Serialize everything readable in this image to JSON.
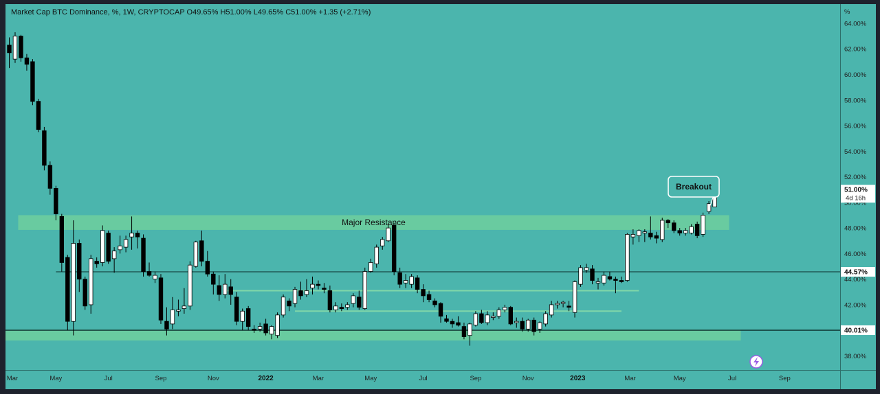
{
  "header": {
    "legend": "Market Cap BTC Dominance, %, 1W, CRYPTOCAP  O49.65%  H51.00%  L49.65%  C51.00%  +1.35 (+2.71%)"
  },
  "colors": {
    "background": "#4bb5ad",
    "zone": "#6fcf9e",
    "bull": "#ffffff",
    "bear": "#000000",
    "frame": "#1e222d",
    "axis_bg": "#4bb5ad"
  },
  "icons": {
    "bolt": "lightning-bolt-icon"
  },
  "chart_data": {
    "type": "candlestick",
    "title": "Market Cap BTC Dominance, %, 1W, CRYPTOCAP",
    "ohlc_summary": {
      "open": "49.65%",
      "high": "51.00%",
      "low": "49.65%",
      "close": "51.00%",
      "change": "+1.35 (+2.71%)"
    },
    "ylim": [
      36.9,
      65.5
    ],
    "y_unit_label": "%",
    "y_ticks": [
      "64.00%",
      "62.00%",
      "60.00%",
      "58.00%",
      "56.00%",
      "54.00%",
      "52.00%",
      "50.00%",
      "48.00%",
      "46.00%",
      "44.00%",
      "42.00%",
      "40.00%",
      "38.00%"
    ],
    "x_ticks": [
      {
        "label": "Mar",
        "index": -1.5,
        "bold": false
      },
      {
        "label": "May",
        "index": 8,
        "bold": false
      },
      {
        "label": "Jul",
        "index": 17,
        "bold": false
      },
      {
        "label": "Sep",
        "index": 26,
        "bold": false
      },
      {
        "label": "Nov",
        "index": 35,
        "bold": false
      },
      {
        "label": "2022",
        "index": 44,
        "bold": true
      },
      {
        "label": "Mar",
        "index": 53,
        "bold": false
      },
      {
        "label": "May",
        "index": 62,
        "bold": false
      },
      {
        "label": "Jul",
        "index": 71,
        "bold": false
      },
      {
        "label": "Sep",
        "index": 80,
        "bold": false
      },
      {
        "label": "Nov",
        "index": 89,
        "bold": false
      },
      {
        "label": "2023",
        "index": 97.5,
        "bold": true
      },
      {
        "label": "Mar",
        "index": 106.5,
        "bold": false
      },
      {
        "label": "May",
        "index": 115,
        "bold": false
      },
      {
        "label": "Jul",
        "index": 124,
        "bold": false
      },
      {
        "label": "Sep",
        "index": 133,
        "bold": false
      }
    ],
    "candles": [
      {
        "o": 62.3,
        "h": 62.9,
        "l": 60.5,
        "c": 61.7
      },
      {
        "o": 61.2,
        "h": 63.3,
        "l": 60.9,
        "c": 63.0
      },
      {
        "o": 63.0,
        "h": 63.1,
        "l": 61.0,
        "c": 61.3
      },
      {
        "o": 61.3,
        "h": 61.6,
        "l": 60.3,
        "c": 60.8
      },
      {
        "o": 61.0,
        "h": 61.2,
        "l": 57.6,
        "c": 57.9
      },
      {
        "o": 57.9,
        "h": 58.1,
        "l": 55.5,
        "c": 55.7
      },
      {
        "o": 55.6,
        "h": 55.9,
        "l": 52.5,
        "c": 52.9
      },
      {
        "o": 52.9,
        "h": 53.2,
        "l": 50.6,
        "c": 51.1
      },
      {
        "o": 51.1,
        "h": 51.3,
        "l": 48.6,
        "c": 49.1
      },
      {
        "o": 48.9,
        "h": 49.1,
        "l": 44.6,
        "c": 45.3
      },
      {
        "o": 45.7,
        "h": 45.9,
        "l": 40.0,
        "c": 40.7
      },
      {
        "o": 40.7,
        "h": 48.6,
        "l": 39.6,
        "c": 46.8
      },
      {
        "o": 46.8,
        "h": 47.1,
        "l": 43.0,
        "c": 44.0
      },
      {
        "o": 44.0,
        "h": 44.2,
        "l": 41.6,
        "c": 41.9
      },
      {
        "o": 42.0,
        "h": 45.9,
        "l": 41.3,
        "c": 45.6
      },
      {
        "o": 45.4,
        "h": 45.7,
        "l": 44.9,
        "c": 45.2
      },
      {
        "o": 45.3,
        "h": 48.2,
        "l": 45.0,
        "c": 47.8
      },
      {
        "o": 47.6,
        "h": 47.8,
        "l": 45.2,
        "c": 45.4
      },
      {
        "o": 45.6,
        "h": 46.5,
        "l": 44.5,
        "c": 46.2
      },
      {
        "o": 46.3,
        "h": 47.4,
        "l": 46.0,
        "c": 46.6
      },
      {
        "o": 46.5,
        "h": 47.4,
        "l": 46.1,
        "c": 47.1
      },
      {
        "o": 47.3,
        "h": 48.9,
        "l": 46.3,
        "c": 47.6
      },
      {
        "o": 47.6,
        "h": 47.8,
        "l": 46.4,
        "c": 47.3
      },
      {
        "o": 47.2,
        "h": 47.5,
        "l": 44.2,
        "c": 44.6
      },
      {
        "o": 44.6,
        "h": 45.3,
        "l": 44.2,
        "c": 44.3
      },
      {
        "o": 44.0,
        "h": 44.6,
        "l": 43.7,
        "c": 44.3
      },
      {
        "o": 44.1,
        "h": 44.4,
        "l": 40.5,
        "c": 40.8
      },
      {
        "o": 40.7,
        "h": 41.8,
        "l": 39.6,
        "c": 40.1
      },
      {
        "o": 40.5,
        "h": 42.6,
        "l": 40.1,
        "c": 41.6
      },
      {
        "o": 41.5,
        "h": 42.4,
        "l": 41.1,
        "c": 41.6
      },
      {
        "o": 41.7,
        "h": 43.3,
        "l": 41.3,
        "c": 41.9
      },
      {
        "o": 41.9,
        "h": 45.4,
        "l": 41.6,
        "c": 45.1
      },
      {
        "o": 45.0,
        "h": 47.0,
        "l": 44.9,
        "c": 46.9
      },
      {
        "o": 47.0,
        "h": 47.8,
        "l": 45.0,
        "c": 45.4
      },
      {
        "o": 45.4,
        "h": 46.2,
        "l": 44.2,
        "c": 44.4
      },
      {
        "o": 44.4,
        "h": 44.6,
        "l": 42.8,
        "c": 43.6
      },
      {
        "o": 43.5,
        "h": 44.3,
        "l": 42.3,
        "c": 42.8
      },
      {
        "o": 42.8,
        "h": 44.4,
        "l": 42.5,
        "c": 43.6
      },
      {
        "o": 43.4,
        "h": 44.0,
        "l": 42.0,
        "c": 42.8
      },
      {
        "o": 42.6,
        "h": 43.0,
        "l": 40.4,
        "c": 40.7
      },
      {
        "o": 40.7,
        "h": 41.7,
        "l": 40.0,
        "c": 41.5
      },
      {
        "o": 41.7,
        "h": 41.9,
        "l": 40.0,
        "c": 40.3
      },
      {
        "o": 40.1,
        "h": 40.4,
        "l": 39.8,
        "c": 40.0
      },
      {
        "o": 40.1,
        "h": 40.6,
        "l": 39.9,
        "c": 40.3
      },
      {
        "o": 40.5,
        "h": 40.9,
        "l": 39.6,
        "c": 39.8
      },
      {
        "o": 39.7,
        "h": 40.4,
        "l": 39.3,
        "c": 40.3
      },
      {
        "o": 39.6,
        "h": 41.4,
        "l": 39.4,
        "c": 41.2
      },
      {
        "o": 41.2,
        "h": 42.8,
        "l": 41.0,
        "c": 42.6
      },
      {
        "o": 42.3,
        "h": 42.5,
        "l": 41.5,
        "c": 41.9
      },
      {
        "o": 42.1,
        "h": 43.4,
        "l": 41.8,
        "c": 43.2
      },
      {
        "o": 43.1,
        "h": 43.8,
        "l": 42.4,
        "c": 42.7
      },
      {
        "o": 42.8,
        "h": 44.0,
        "l": 42.6,
        "c": 43.1
      },
      {
        "o": 43.3,
        "h": 44.2,
        "l": 42.8,
        "c": 43.6
      },
      {
        "o": 43.6,
        "h": 43.9,
        "l": 43.2,
        "c": 43.5
      },
      {
        "o": 43.3,
        "h": 43.7,
        "l": 42.9,
        "c": 43.2
      },
      {
        "o": 43.1,
        "h": 43.5,
        "l": 41.4,
        "c": 41.6
      },
      {
        "o": 41.6,
        "h": 42.2,
        "l": 41.4,
        "c": 41.9
      },
      {
        "o": 41.8,
        "h": 42.1,
        "l": 41.5,
        "c": 41.7
      },
      {
        "o": 41.8,
        "h": 42.2,
        "l": 41.6,
        "c": 42.0
      },
      {
        "o": 42.1,
        "h": 42.9,
        "l": 41.8,
        "c": 42.7
      },
      {
        "o": 42.6,
        "h": 43.1,
        "l": 41.6,
        "c": 41.8
      },
      {
        "o": 41.7,
        "h": 44.9,
        "l": 41.6,
        "c": 44.6
      },
      {
        "o": 44.6,
        "h": 45.6,
        "l": 44.5,
        "c": 45.3
      },
      {
        "o": 45.2,
        "h": 46.7,
        "l": 44.9,
        "c": 46.5
      },
      {
        "o": 46.6,
        "h": 47.3,
        "l": 46.3,
        "c": 47.1
      },
      {
        "o": 47.0,
        "h": 48.3,
        "l": 46.9,
        "c": 48.0
      },
      {
        "o": 48.2,
        "h": 48.4,
        "l": 44.3,
        "c": 44.6
      },
      {
        "o": 44.5,
        "h": 44.9,
        "l": 43.3,
        "c": 43.6
      },
      {
        "o": 43.7,
        "h": 44.4,
        "l": 43.3,
        "c": 43.9
      },
      {
        "o": 43.6,
        "h": 44.4,
        "l": 43.3,
        "c": 44.2
      },
      {
        "o": 44.1,
        "h": 44.3,
        "l": 42.9,
        "c": 43.2
      },
      {
        "o": 43.2,
        "h": 43.6,
        "l": 42.2,
        "c": 42.7
      },
      {
        "o": 42.8,
        "h": 43.1,
        "l": 42.2,
        "c": 42.4
      },
      {
        "o": 42.3,
        "h": 42.5,
        "l": 41.8,
        "c": 42.0
      },
      {
        "o": 42.1,
        "h": 42.2,
        "l": 40.6,
        "c": 41.1
      },
      {
        "o": 40.9,
        "h": 41.2,
        "l": 40.6,
        "c": 40.7
      },
      {
        "o": 40.7,
        "h": 40.9,
        "l": 40.2,
        "c": 40.5
      },
      {
        "o": 40.6,
        "h": 41.1,
        "l": 40.3,
        "c": 40.4
      },
      {
        "o": 40.3,
        "h": 40.6,
        "l": 39.3,
        "c": 39.5
      },
      {
        "o": 39.6,
        "h": 40.6,
        "l": 38.8,
        "c": 40.5
      },
      {
        "o": 40.4,
        "h": 41.5,
        "l": 40.3,
        "c": 41.3
      },
      {
        "o": 41.3,
        "h": 41.6,
        "l": 40.5,
        "c": 40.6
      },
      {
        "o": 40.6,
        "h": 41.5,
        "l": 40.4,
        "c": 41.2
      },
      {
        "o": 41.0,
        "h": 41.4,
        "l": 40.8,
        "c": 41.1
      },
      {
        "o": 41.1,
        "h": 41.8,
        "l": 40.9,
        "c": 41.6
      },
      {
        "o": 41.6,
        "h": 42.0,
        "l": 41.4,
        "c": 41.8
      },
      {
        "o": 41.8,
        "h": 41.9,
        "l": 40.4,
        "c": 40.5
      },
      {
        "o": 40.6,
        "h": 41.0,
        "l": 40.2,
        "c": 40.7
      },
      {
        "o": 40.7,
        "h": 41.0,
        "l": 39.9,
        "c": 40.1
      },
      {
        "o": 40.1,
        "h": 40.9,
        "l": 39.9,
        "c": 40.8
      },
      {
        "o": 40.8,
        "h": 41.0,
        "l": 39.6,
        "c": 39.9
      },
      {
        "o": 40.1,
        "h": 40.7,
        "l": 39.8,
        "c": 40.6
      },
      {
        "o": 40.5,
        "h": 41.5,
        "l": 40.3,
        "c": 41.3
      },
      {
        "o": 41.2,
        "h": 42.3,
        "l": 41.0,
        "c": 42.0
      },
      {
        "o": 42.0,
        "h": 42.3,
        "l": 41.7,
        "c": 42.1
      },
      {
        "o": 42.1,
        "h": 42.3,
        "l": 41.8,
        "c": 42.2
      },
      {
        "o": 41.9,
        "h": 42.3,
        "l": 41.5,
        "c": 41.8
      },
      {
        "o": 41.4,
        "h": 43.9,
        "l": 41.0,
        "c": 43.8
      },
      {
        "o": 43.6,
        "h": 45.1,
        "l": 43.4,
        "c": 44.9
      },
      {
        "o": 44.7,
        "h": 45.2,
        "l": 44.5,
        "c": 44.9
      },
      {
        "o": 44.8,
        "h": 45.1,
        "l": 43.6,
        "c": 43.9
      },
      {
        "o": 43.7,
        "h": 44.1,
        "l": 43.2,
        "c": 43.8
      },
      {
        "o": 43.7,
        "h": 44.6,
        "l": 43.5,
        "c": 44.3
      },
      {
        "o": 44.2,
        "h": 44.6,
        "l": 43.9,
        "c": 44.0
      },
      {
        "o": 44.0,
        "h": 44.2,
        "l": 42.9,
        "c": 43.9
      },
      {
        "o": 43.9,
        "h": 44.2,
        "l": 43.7,
        "c": 43.8
      },
      {
        "o": 43.9,
        "h": 47.6,
        "l": 43.8,
        "c": 47.5
      },
      {
        "o": 47.3,
        "h": 47.9,
        "l": 46.7,
        "c": 47.5
      },
      {
        "o": 47.4,
        "h": 47.9,
        "l": 46.9,
        "c": 47.8
      },
      {
        "o": 47.6,
        "h": 47.9,
        "l": 46.9,
        "c": 47.7
      },
      {
        "o": 47.6,
        "h": 48.9,
        "l": 47.1,
        "c": 47.3
      },
      {
        "o": 47.4,
        "h": 47.7,
        "l": 46.8,
        "c": 47.2
      },
      {
        "o": 47.1,
        "h": 48.8,
        "l": 46.9,
        "c": 48.6
      },
      {
        "o": 48.6,
        "h": 48.7,
        "l": 48.0,
        "c": 48.4
      },
      {
        "o": 48.4,
        "h": 48.6,
        "l": 47.6,
        "c": 47.8
      },
      {
        "o": 47.8,
        "h": 48.0,
        "l": 47.4,
        "c": 47.6
      },
      {
        "o": 47.6,
        "h": 48.0,
        "l": 47.4,
        "c": 47.8
      },
      {
        "o": 47.6,
        "h": 48.3,
        "l": 47.5,
        "c": 48.1
      },
      {
        "o": 48.3,
        "h": 48.5,
        "l": 47.2,
        "c": 47.4
      },
      {
        "o": 47.5,
        "h": 49.2,
        "l": 47.3,
        "c": 49.0
      },
      {
        "o": 49.3,
        "h": 50.1,
        "l": 49.1,
        "c": 49.9
      },
      {
        "o": 49.65,
        "h": 51.0,
        "l": 49.65,
        "c": 51.0
      }
    ],
    "zones": [
      {
        "name": "Major Resistance",
        "label": "Major Resistance",
        "y_low": 47.85,
        "y_high": 49.0,
        "start_index": 2,
        "end_index": 123
      },
      {
        "name": "support",
        "label": "",
        "y_low": 39.2,
        "y_high": 40.05,
        "start_index": -1,
        "end_index": 125
      }
    ],
    "hlines": [
      {
        "name": "44.57",
        "y": 44.57,
        "start_index": 8,
        "value_label": "44.57%"
      },
      {
        "name": "40.01",
        "y": 40.01,
        "start_index": -1,
        "value_label": "40.01%"
      }
    ],
    "faint_lines": [
      {
        "y": 43.1,
        "start_index": 37,
        "end_index": 108
      },
      {
        "y": 41.5,
        "start_index": 49,
        "end_index": 105
      }
    ],
    "current_price": {
      "value": 51.0,
      "label": "51.00%",
      "countdown": "4d 16h"
    },
    "annotation": {
      "text": "Breakout",
      "anchor_index": 120,
      "anchor_price": 49.3
    }
  }
}
